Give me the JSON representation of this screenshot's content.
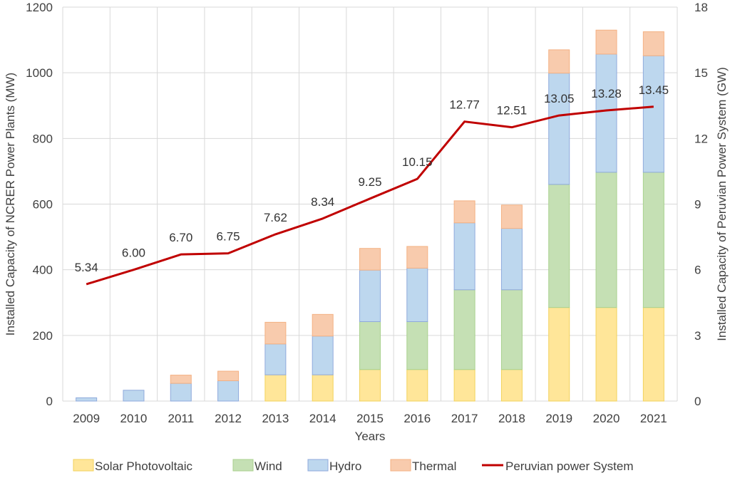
{
  "chart_data": {
    "type": "bar",
    "stacked": true,
    "categories": [
      "2009",
      "2010",
      "2011",
      "2012",
      "2013",
      "2014",
      "2015",
      "2016",
      "2017",
      "2018",
      "2019",
      "2020",
      "2021"
    ],
    "series": [
      {
        "name": "Solar Photovoltaic",
        "color": "#ffe699",
        "stroke": "#f2d25c",
        "values": [
          0,
          0,
          0,
          0,
          80,
          80,
          96,
          96,
          96,
          96,
          285,
          285,
          285
        ]
      },
      {
        "name": "Wind",
        "color": "#c5e0b4",
        "stroke": "#a9d18e",
        "values": [
          0,
          0,
          0,
          0,
          0,
          0,
          146,
          146,
          243,
          243,
          375,
          412,
          412
        ]
      },
      {
        "name": "Hydro",
        "color": "#bdd7ee",
        "stroke": "#8faadc",
        "values": [
          10,
          33,
          54,
          62,
          94,
          118,
          157,
          163,
          204,
          187,
          339,
          360,
          355
        ]
      },
      {
        "name": "Thermal",
        "color": "#f8cbad",
        "stroke": "#f4b183",
        "values": [
          0,
          0,
          25,
          29,
          66,
          66,
          66,
          66,
          67,
          71,
          71,
          73,
          73
        ]
      }
    ],
    "line": {
      "name": "Peruvian power System",
      "color": "#c00000",
      "axis": "right",
      "values": [
        5.34,
        6.0,
        6.7,
        6.75,
        7.62,
        8.34,
        9.25,
        10.15,
        12.77,
        12.51,
        13.05,
        13.28,
        13.45
      ],
      "labels": [
        "5.34",
        "6.00",
        "6.70",
        "6.75",
        "7.62",
        "8.34",
        "9.25",
        "10.15",
        "12.77",
        "12.51",
        "13.05",
        "13.28",
        "13.45"
      ]
    },
    "xlabel": "Years",
    "ylabel": "Installed Capacity of NCRER Power Plants (MW)",
    "y2label": "Installed Capacity of Peruvian Power System (GW)",
    "ylim": [
      0,
      1200
    ],
    "yticks": [
      0,
      200,
      400,
      600,
      800,
      1000,
      1200
    ],
    "y2lim": [
      0,
      18
    ],
    "y2ticks": [
      0,
      3,
      6,
      9,
      12,
      15,
      18
    ],
    "grid": true,
    "legend": "bottom"
  }
}
